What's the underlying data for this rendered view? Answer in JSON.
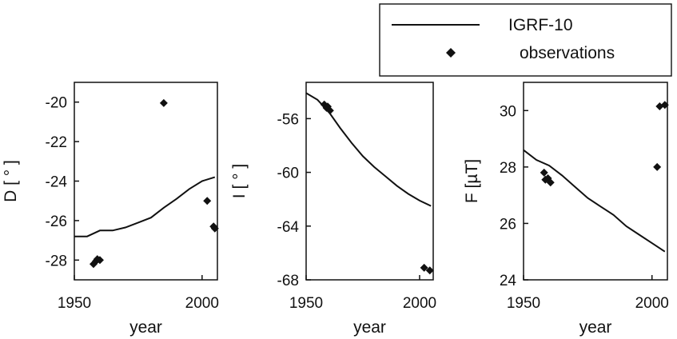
{
  "legend": {
    "entries": [
      {
        "label": "IGRF-10",
        "marker": "line"
      },
      {
        "label": "observations",
        "marker": "diamond"
      }
    ]
  },
  "chart_data": [
    {
      "type": "line",
      "xlabel": "year",
      "ylabel": "D [ ° ]",
      "xlim": [
        1950,
        2006
      ],
      "ylim": [
        -29.0,
        -19.0
      ],
      "xticks": [
        1950,
        2000
      ],
      "yticks": [
        -28,
        -26,
        -24,
        -22,
        -20
      ],
      "series": [
        {
          "name": "IGRF-10",
          "kind": "line",
          "x": [
            1950,
            1955,
            1960,
            1965,
            1970,
            1975,
            1980,
            1985,
            1990,
            1995,
            2000,
            2005
          ],
          "y": [
            -26.8,
            -26.8,
            -26.5,
            -26.5,
            -26.35,
            -26.1,
            -25.85,
            -25.35,
            -24.9,
            -24.4,
            -24.0,
            -23.8
          ]
        },
        {
          "name": "observations",
          "kind": "scatter",
          "x": [
            1957.5,
            1958.5,
            1959.0,
            1960.0,
            1985.0,
            2002.0,
            2004.5,
            2005.0
          ],
          "y": [
            -28.2,
            -28.05,
            -27.95,
            -28.0,
            -20.05,
            -25.0,
            -26.3,
            -26.4
          ]
        }
      ]
    },
    {
      "type": "line",
      "xlabel": "year",
      "ylabel": "I [ ° ]",
      "xlim": [
        1950,
        2006
      ],
      "ylim": [
        -68.0,
        -53.3
      ],
      "xticks": [
        1950,
        2000
      ],
      "yticks": [
        -56,
        -60,
        -64,
        -68
      ],
      "series": [
        {
          "name": "IGRF-10",
          "kind": "line",
          "x": [
            1950,
            1955,
            1960,
            1965,
            1970,
            1975,
            1980,
            1985,
            1990,
            1995,
            2000,
            2005
          ],
          "y": [
            -54.1,
            -54.6,
            -55.5,
            -56.7,
            -57.8,
            -58.8,
            -59.6,
            -60.3,
            -61.0,
            -61.6,
            -62.1,
            -62.5
          ]
        },
        {
          "name": "observations",
          "kind": "scatter",
          "x": [
            1958.0,
            1959.0,
            1959.5,
            1960.5,
            2002.0,
            2004.5
          ],
          "y": [
            -54.95,
            -55.2,
            -55.1,
            -55.4,
            -67.1,
            -67.3
          ]
        }
      ]
    },
    {
      "type": "line",
      "xlabel": "year",
      "ylabel": "F [µT]",
      "xlim": [
        1950,
        2006
      ],
      "ylim": [
        24.0,
        31.0
      ],
      "xticks": [
        1950,
        2000
      ],
      "yticks": [
        24,
        26,
        28,
        30
      ],
      "series": [
        {
          "name": "IGRF-10",
          "kind": "line",
          "x": [
            1950,
            1955,
            1960,
            1965,
            1970,
            1975,
            1980,
            1985,
            1990,
            1995,
            2000,
            2005
          ],
          "y": [
            28.6,
            28.25,
            28.05,
            27.7,
            27.3,
            26.9,
            26.6,
            26.3,
            25.9,
            25.6,
            25.3,
            25.0
          ]
        },
        {
          "name": "observations",
          "kind": "scatter",
          "x": [
            1958.0,
            1958.5,
            1959.5,
            1960.5,
            2002.0,
            2003.0,
            2005.0
          ],
          "y": [
            27.8,
            27.55,
            27.6,
            27.45,
            28.0,
            30.15,
            30.2
          ]
        }
      ]
    }
  ]
}
